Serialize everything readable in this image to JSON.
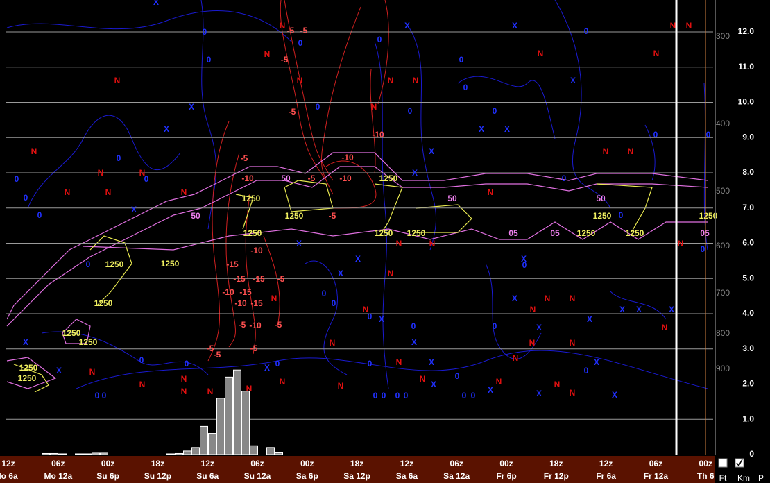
{
  "chart_data": {
    "type": "bar",
    "categories": [
      null,
      null,
      null,
      null,
      null,
      null,
      null,
      null,
      null,
      null,
      null,
      null,
      null,
      null,
      null,
      null,
      null,
      null,
      null,
      null,
      null,
      null,
      null,
      null,
      null,
      null,
      null,
      null,
      null
    ],
    "values": [
      0.03,
      0.03,
      0.02,
      0,
      0.02,
      0.02,
      0.04,
      0.04,
      0,
      0,
      0,
      0,
      0,
      0,
      0,
      0.02,
      0.03,
      0.1,
      0.2,
      0.8,
      0.6,
      1.6,
      2.2,
      2.4,
      1.8,
      0.25,
      0,
      0.2,
      0.05
    ],
    "color": "#888888",
    "ylim": [
      0,
      12.9
    ],
    "yticks": [
      {
        "value": 0,
        "label": "0"
      },
      {
        "value": 1,
        "label": "1.0"
      },
      {
        "value": 2,
        "label": "2.0"
      },
      {
        "value": 3,
        "label": "3.0"
      },
      {
        "value": 4,
        "label": "4.0"
      },
      {
        "value": 5,
        "label": "5.0"
      },
      {
        "value": 6,
        "label": "6.0"
      },
      {
        "value": 7,
        "label": "7.0"
      },
      {
        "value": 8,
        "label": "8.0"
      },
      {
        "value": 9,
        "label": "9.0"
      },
      {
        "value": 10,
        "label": "10.0"
      },
      {
        "value": 11,
        "label": "11.0"
      },
      {
        "value": 12,
        "label": "12.0"
      }
    ],
    "grid": true,
    "pressure_labels": [
      300,
      400,
      500,
      600,
      700,
      800,
      900
    ],
    "hour_labels": [
      "12z",
      "06z",
      "00z",
      "18z",
      "12z",
      "06z",
      "00z",
      "18z",
      "12z",
      "06z",
      "00z",
      "18z",
      "12z",
      "06z",
      "00z"
    ],
    "day_labels": [
      "lo 6a",
      "Mo 12a",
      "Su 6p",
      "Su 12p",
      "Su 6a",
      "Su 12a",
      "Sa 6p",
      "Sa 12p",
      "Sa 6a",
      "Sa 12a",
      "Fr 6p",
      "Fr 12p",
      "Fr 6a",
      "Fr 12a",
      "Th 6"
    ],
    "red_markers": [
      "N",
      "N",
      "N",
      "N",
      "N",
      "N",
      "N",
      "N",
      "N",
      "N",
      "N",
      "N",
      "N",
      "N",
      "N",
      "N",
      "N",
      "N",
      "N",
      "N",
      "N",
      "N",
      "N",
      "N",
      "N",
      "N",
      "N",
      "N",
      "N",
      "N",
      "N",
      "N",
      "N",
      "N",
      "N",
      "N",
      "N",
      "N",
      "N",
      "N",
      "N",
      "N",
      "N",
      "N",
      "N",
      "N",
      "N"
    ],
    "x_markers": [
      "X",
      "X",
      "X",
      "X",
      "X",
      "X",
      "X",
      "X",
      "X",
      "X",
      "X",
      "X",
      "X",
      "X",
      "X",
      "X",
      "X",
      "X",
      "X",
      "X",
      "X",
      "X",
      "X",
      "X",
      "X",
      "X",
      "X",
      "X",
      "X",
      "X",
      "X",
      "X"
    ],
    "zero_markers": [
      "0",
      "0",
      "0",
      "0",
      "0",
      "0",
      "0",
      "0",
      "0",
      "0",
      "0",
      "0",
      "0",
      "0",
      "0",
      "0",
      "0",
      "0",
      "0",
      "0",
      "0",
      "0",
      "0",
      "0",
      "0",
      "0",
      "0",
      "0",
      "0",
      "0",
      "0",
      "0",
      "0",
      "0",
      "0",
      "0",
      "0",
      "0",
      "0",
      "0",
      "0"
    ],
    "red_contour_labels": [
      "-5",
      "-5",
      "-5",
      "-5",
      "-5",
      "-5",
      "-5",
      "-5",
      "-5",
      "-5",
      "-5",
      "-5",
      "-5",
      "-10",
      "-10",
      "-10",
      "-10",
      "-10",
      "-10",
      "-10",
      "-10",
      "-15",
      "-15",
      "-15",
      "-15",
      "-15"
    ],
    "pink_contour_labels": [
      "50",
      "50",
      "50",
      "50",
      "05",
      "05",
      "05"
    ],
    "yellow_contour_labels": [
      "1250",
      "1250",
      "1250",
      "1250",
      "1250",
      "1250",
      "1250",
      "1250",
      "1250",
      "1250",
      "1250",
      "1250",
      "1250",
      "1250",
      "1250",
      "1250",
      "1250"
    ],
    "unit_buttons": [
      "Ft",
      "Km",
      "P"
    ]
  }
}
